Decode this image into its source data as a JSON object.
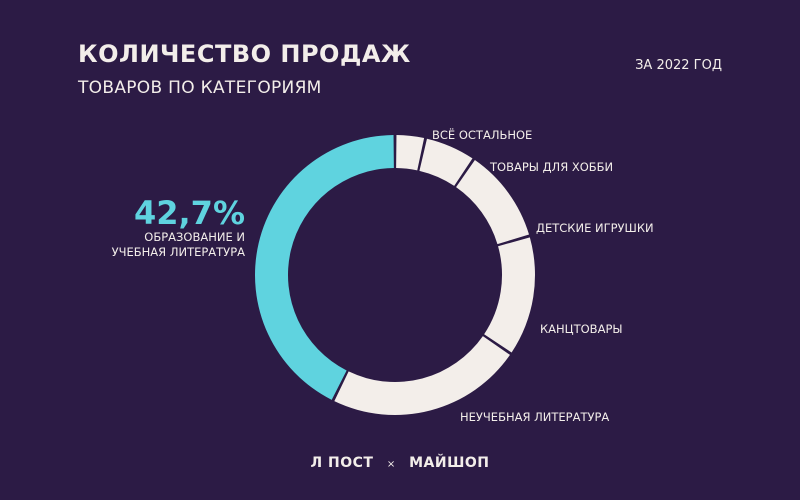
{
  "header": {
    "title": "КОЛИЧЕСТВО ПРОДАЖ",
    "subtitle": "ТОВАРОВ ПО КАТЕГОРИЯМ",
    "period": "ЗА 2022 ГОД"
  },
  "highlight": {
    "percent": "42,7%",
    "label_line1": "ОБРАЗОВАНИЕ И",
    "label_line2": "УЧЕБНАЯ ЛИТЕРАТУРА"
  },
  "chart_data": {
    "type": "pie",
    "categories": [
      "ОБРАЗОВАНИЕ И УЧЕБНАЯ ЛИТЕРАТУРА",
      "ВСЁ ОСТАЛЬНОЕ",
      "ТОВАРЫ ДЛЯ ХОББИ",
      "ДЕТСКИЕ ИГРУШКИ",
      "КАНЦТОВАРЫ",
      "НЕУЧЕБНАЯ ЛИТЕРАТУРА"
    ],
    "values": [
      42.7,
      3.5,
      6.0,
      11.0,
      14.0,
      22.8
    ],
    "colors": [
      "#5fd3df",
      "#f3eeea",
      "#f3eeea",
      "#f3eeea",
      "#f3eeea",
      "#f3eeea"
    ],
    "style": "donut"
  },
  "footer": {
    "brand_left": "Л ПОСТ",
    "separator": "×",
    "brand_right": "МАЙШОП"
  }
}
